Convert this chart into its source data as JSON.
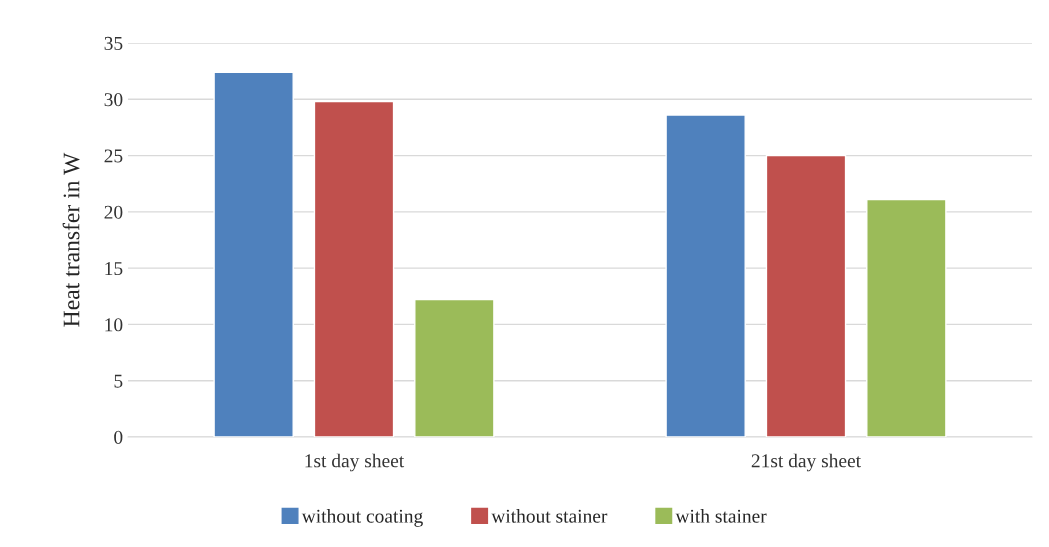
{
  "chart_data": {
    "type": "bar",
    "ylabel": "Heat transfer in W",
    "categories": [
      "1st day sheet",
      "21st day sheet"
    ],
    "series": [
      {
        "name": "without coating",
        "color": "#4f81bd",
        "values": [
          32.4,
          28.6
        ]
      },
      {
        "name": "without stainer",
        "color": "#c0504d",
        "values": [
          29.8,
          25.0
        ]
      },
      {
        "name": "with stainer",
        "color": "#9bbb59",
        "values": [
          12.2,
          21.1
        ]
      }
    ],
    "ylim": [
      0,
      35
    ],
    "yticks": [
      0,
      5,
      10,
      15,
      20,
      25,
      30,
      35
    ],
    "grid": "y",
    "legend": "bottom"
  }
}
